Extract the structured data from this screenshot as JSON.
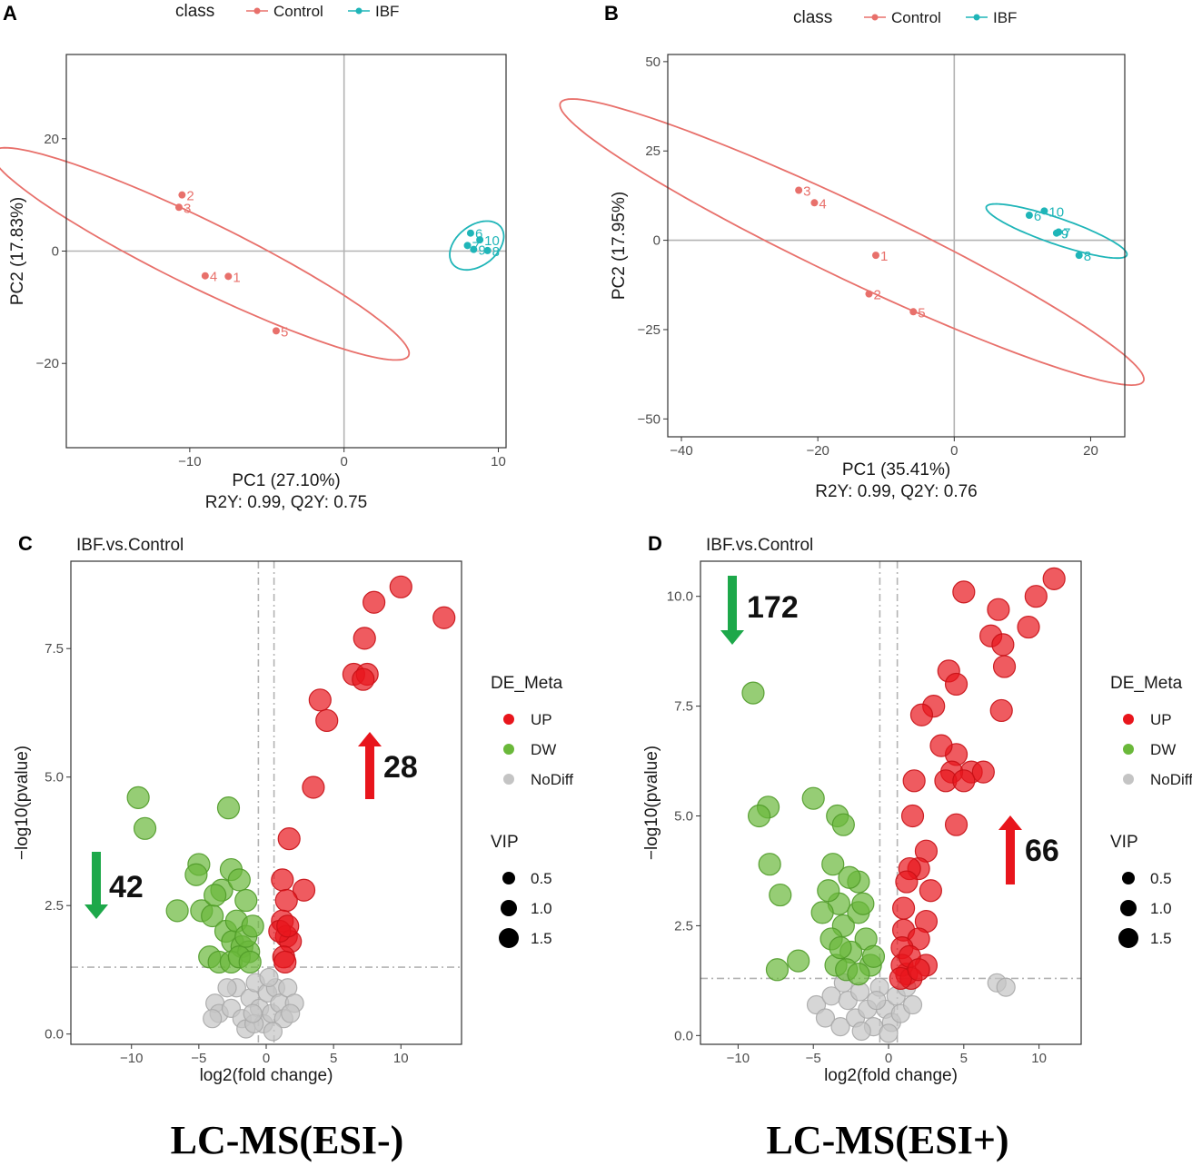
{
  "colors": {
    "control": "#e8706b",
    "ibf": "#1fb5b8",
    "up": "#e8151c",
    "dw": "#6ab83a",
    "nodiff": "#c4c4c4",
    "arrow_up": "#e8151c",
    "arrow_down": "#1da84a",
    "refline": "#b3b3b3"
  },
  "chart_data": [
    {
      "panel": "A",
      "type": "scatter",
      "legend": {
        "title": "class",
        "items": [
          "Control",
          "IBF"
        ]
      },
      "xlabel": "PC1 (27.10%)",
      "subtitle": "R2Y: 0.99, Q2Y: 0.75",
      "ylabel": "PC2 (17.83%)",
      "xlim": [
        -18,
        10.5
      ],
      "ylim": [
        -35,
        35
      ],
      "xticks": [
        -10,
        0,
        10
      ],
      "yticks": [
        -20,
        0,
        20
      ],
      "series": [
        {
          "name": "Control",
          "points": [
            {
              "label": "1",
              "x": -7.5,
              "y": -4.5
            },
            {
              "label": "2",
              "x": -10.5,
              "y": 10
            },
            {
              "label": "3",
              "x": -10.7,
              "y": 7.8
            },
            {
              "label": "4",
              "x": -9.0,
              "y": -4.4
            },
            {
              "label": "5",
              "x": -4.4,
              "y": -14.2
            }
          ]
        },
        {
          "name": "IBF",
          "points": [
            {
              "label": "6",
              "x": 8.2,
              "y": 3.2
            },
            {
              "label": "7",
              "x": 8.0,
              "y": 1.0
            },
            {
              "label": "8",
              "x": 9.3,
              "y": 0.1
            },
            {
              "label": "9",
              "x": 8.4,
              "y": 0.3
            },
            {
              "label": "10",
              "x": 8.8,
              "y": 2.0
            }
          ]
        }
      ],
      "ellipses": [
        {
          "name": "Control",
          "cx": -9.3,
          "cy": -0.5,
          "rx": 22.9,
          "ry": 3.9,
          "angle_deg": -55
        },
        {
          "name": "IBF",
          "cx": 8.6,
          "cy": 1.0,
          "rx": 1.6,
          "ry": 4.4,
          "angle_deg": -10
        }
      ]
    },
    {
      "panel": "B",
      "type": "scatter",
      "legend": {
        "title": "class",
        "items": [
          "Control",
          "IBF"
        ]
      },
      "xlabel": "PC1 (35.41%)",
      "subtitle": "R2Y: 0.99, Q2Y: 0.76",
      "ylabel": "PC2 (17.95%)",
      "xlim": [
        -42,
        25
      ],
      "ylim": [
        -55,
        52
      ],
      "xticks": [
        -40,
        -20,
        0,
        20
      ],
      "yticks": [
        -50,
        -25,
        0,
        25,
        50
      ],
      "series": [
        {
          "name": "Control",
          "points": [
            {
              "label": "1",
              "x": -11.5,
              "y": -4.2
            },
            {
              "label": "2",
              "x": -12.5,
              "y": -15
            },
            {
              "label": "3",
              "x": -22.8,
              "y": 14
            },
            {
              "label": "4",
              "x": -20.5,
              "y": 10.5
            },
            {
              "label": "5",
              "x": -6.0,
              "y": -20.0
            }
          ]
        },
        {
          "name": "IBF",
          "points": [
            {
              "label": "6",
              "x": 11.0,
              "y": 7.0
            },
            {
              "label": "7",
              "x": 15.3,
              "y": 2.3
            },
            {
              "label": "8",
              "x": 18.3,
              "y": -4.2
            },
            {
              "label": "9",
              "x": 15.0,
              "y": 2.0
            },
            {
              "label": "10",
              "x": 13.2,
              "y": 8.2
            }
          ]
        }
      ],
      "ellipses": [
        {
          "name": "Control",
          "cx": -15.0,
          "cy": -0.5,
          "rx": 58.0,
          "ry": 8.5,
          "angle_deg": -43
        },
        {
          "name": "IBF",
          "cx": 15.0,
          "cy": 2.6,
          "rx": 12.4,
          "ry": 3.2,
          "angle_deg": -35
        }
      ]
    },
    {
      "panel": "C",
      "type": "scatter",
      "title": "IBF.vs.Control",
      "xlabel": "log2(fold change)",
      "ylabel": "−log10(pvalue)",
      "xlim": [
        -14.5,
        14.5
      ],
      "ylim": [
        -0.2,
        9.2
      ],
      "xticks": [
        -10,
        -5,
        0,
        5,
        10
      ],
      "yticks": [
        0.0,
        2.5,
        5.0,
        7.5
      ],
      "thresholds": {
        "x": [
          -0.58,
          0.58
        ],
        "y": 1.3
      },
      "legend": {
        "title": "DE_Meta",
        "items": [
          "UP",
          "DW",
          "NoDiff"
        ],
        "size_title": "VIP",
        "sizes": [
          "0.5",
          "1.0",
          "1.5"
        ]
      },
      "counts": {
        "up": "28",
        "down": "42"
      },
      "series": [
        {
          "name": "UP",
          "points": [
            [
              10.0,
              8.7
            ],
            [
              13.2,
              8.1
            ],
            [
              8.0,
              8.4
            ],
            [
              7.3,
              7.7
            ],
            [
              6.5,
              7.0
            ],
            [
              7.5,
              7.0
            ],
            [
              7.2,
              6.9
            ],
            [
              4.0,
              6.5
            ],
            [
              4.5,
              6.1
            ],
            [
              3.5,
              4.8
            ],
            [
              1.7,
              3.8
            ],
            [
              1.2,
              3.0
            ],
            [
              2.8,
              2.8
            ],
            [
              1.5,
              2.6
            ],
            [
              1.2,
              2.2
            ],
            [
              1.5,
              1.9
            ],
            [
              1.8,
              1.8
            ],
            [
              1.3,
              1.5
            ],
            [
              1.4,
              1.4
            ],
            [
              1.0,
              2.0
            ],
            [
              1.6,
              2.1
            ]
          ]
        },
        {
          "name": "DW",
          "points": [
            [
              -9.5,
              4.6
            ],
            [
              -9.0,
              4.0
            ],
            [
              -2.8,
              4.4
            ],
            [
              -5.0,
              3.3
            ],
            [
              -5.2,
              3.1
            ],
            [
              -2.6,
              3.2
            ],
            [
              -3.3,
              2.8
            ],
            [
              -6.6,
              2.4
            ],
            [
              -4.8,
              2.4
            ],
            [
              -4.0,
              2.3
            ],
            [
              -2.0,
              3.0
            ],
            [
              -1.5,
              2.6
            ],
            [
              -3.0,
              2.0
            ],
            [
              -2.5,
              1.8
            ],
            [
              -2.2,
              2.2
            ],
            [
              -1.8,
              1.7
            ],
            [
              -1.3,
              1.6
            ],
            [
              -4.2,
              1.5
            ],
            [
              -3.5,
              1.4
            ],
            [
              -2.6,
              1.4
            ],
            [
              -2.0,
              1.5
            ],
            [
              -1.5,
              1.9
            ],
            [
              -1.2,
              1.4
            ],
            [
              -1.0,
              2.1
            ],
            [
              -3.8,
              2.7
            ]
          ]
        },
        {
          "name": "NoDiff",
          "points": [
            [
              -3.8,
              0.6
            ],
            [
              -3.5,
              0.4
            ],
            [
              -4.0,
              0.3
            ],
            [
              -2.6,
              0.5
            ],
            [
              -2.2,
              0.9
            ],
            [
              -1.8,
              0.3
            ],
            [
              -1.5,
              0.1
            ],
            [
              -1.2,
              0.7
            ],
            [
              -0.8,
              1.0
            ],
            [
              -0.5,
              0.5
            ],
            [
              -0.2,
              0.2
            ],
            [
              0.1,
              0.8
            ],
            [
              0.4,
              0.4
            ],
            [
              0.7,
              0.9
            ],
            [
              1.0,
              0.6
            ],
            [
              1.3,
              0.3
            ],
            [
              1.6,
              0.9
            ],
            [
              2.1,
              0.6
            ],
            [
              -0.9,
              0.2
            ],
            [
              0.2,
              1.1
            ],
            [
              -2.9,
              0.9
            ],
            [
              -1.0,
              0.4
            ],
            [
              0.5,
              0.05
            ],
            [
              1.8,
              0.4
            ]
          ]
        }
      ]
    },
    {
      "panel": "D",
      "type": "scatter",
      "title": "IBF.vs.Control",
      "xlabel": "log2(fold change)",
      "ylabel": "−log10(pvalue)",
      "xlim": [
        -12.5,
        12.8
      ],
      "ylim": [
        -0.2,
        10.8
      ],
      "xticks": [
        -10,
        -5,
        0,
        5,
        10
      ],
      "yticks": [
        0.0,
        2.5,
        5.0,
        7.5,
        10.0
      ],
      "thresholds": {
        "x": [
          -0.58,
          0.58
        ],
        "y": 1.3
      },
      "legend": {
        "title": "DE_Meta",
        "items": [
          "UP",
          "DW",
          "NoDiff"
        ],
        "size_title": "VIP",
        "sizes": [
          "0.5",
          "1.0",
          "1.5"
        ]
      },
      "counts": {
        "up": "66",
        "down": "172"
      },
      "series": [
        {
          "name": "UP",
          "points": [
            [
              11.0,
              10.4
            ],
            [
              9.8,
              10.0
            ],
            [
              7.3,
              9.7
            ],
            [
              5.0,
              10.1
            ],
            [
              9.3,
              9.3
            ],
            [
              6.8,
              9.1
            ],
            [
              7.6,
              8.9
            ],
            [
              7.7,
              8.4
            ],
            [
              4.0,
              8.3
            ],
            [
              4.5,
              8.0
            ],
            [
              7.5,
              7.4
            ],
            [
              3.0,
              7.5
            ],
            [
              2.2,
              7.3
            ],
            [
              4.5,
              6.4
            ],
            [
              3.5,
              6.6
            ],
            [
              5.5,
              6.0
            ],
            [
              4.2,
              6.0
            ],
            [
              6.3,
              6.0
            ],
            [
              3.8,
              5.8
            ],
            [
              5.0,
              5.8
            ],
            [
              1.7,
              5.8
            ],
            [
              4.5,
              4.8
            ],
            [
              1.6,
              5.0
            ],
            [
              2.5,
              4.2
            ],
            [
              2.0,
              3.8
            ],
            [
              1.4,
              3.8
            ],
            [
              1.2,
              3.5
            ],
            [
              2.8,
              3.3
            ],
            [
              1.0,
              2.9
            ],
            [
              2.5,
              2.6
            ],
            [
              1.0,
              2.4
            ],
            [
              2.0,
              2.2
            ],
            [
              0.9,
              2.0
            ],
            [
              2.5,
              1.6
            ],
            [
              1.2,
              1.4
            ],
            [
              0.9,
              1.6
            ],
            [
              1.5,
              1.3
            ],
            [
              0.8,
              1.3
            ],
            [
              1.4,
              1.8
            ],
            [
              2.0,
              1.5
            ]
          ]
        },
        {
          "name": "DW",
          "points": [
            [
              -9.0,
              7.8
            ],
            [
              -5.0,
              5.4
            ],
            [
              -8.0,
              5.2
            ],
            [
              -8.6,
              5.0
            ],
            [
              -3.4,
              5.0
            ],
            [
              -3.0,
              4.8
            ],
            [
              -7.9,
              3.9
            ],
            [
              -3.7,
              3.9
            ],
            [
              -2.0,
              3.5
            ],
            [
              -7.2,
              3.2
            ],
            [
              -3.3,
              3.0
            ],
            [
              -4.4,
              2.8
            ],
            [
              -3.0,
              2.5
            ],
            [
              -2.0,
              2.8
            ],
            [
              -1.5,
              2.2
            ],
            [
              -3.8,
              2.2
            ],
            [
              -2.5,
              1.9
            ],
            [
              -1.2,
              1.6
            ],
            [
              -3.5,
              1.6
            ],
            [
              -2.8,
              1.5
            ],
            [
              -6.0,
              1.7
            ],
            [
              -7.4,
              1.5
            ],
            [
              -2.0,
              1.4
            ],
            [
              -1.0,
              1.8
            ],
            [
              -4.0,
              3.3
            ],
            [
              -2.6,
              3.6
            ],
            [
              -3.2,
              2.0
            ],
            [
              -1.7,
              3.0
            ]
          ]
        },
        {
          "name": "NoDiff",
          "points": [
            [
              -4.8,
              0.7
            ],
            [
              -4.2,
              0.4
            ],
            [
              -3.8,
              0.9
            ],
            [
              -3.2,
              0.2
            ],
            [
              -2.7,
              0.8
            ],
            [
              -2.2,
              0.4
            ],
            [
              -1.9,
              1.0
            ],
            [
              -1.4,
              0.6
            ],
            [
              -1.0,
              0.2
            ],
            [
              -0.6,
              1.1
            ],
            [
              -0.2,
              0.6
            ],
            [
              0.2,
              0.3
            ],
            [
              0.5,
              0.9
            ],
            [
              0.8,
              0.5
            ],
            [
              1.2,
              1.1
            ],
            [
              1.6,
              0.7
            ],
            [
              -3.0,
              1.2
            ],
            [
              -1.8,
              0.1
            ],
            [
              7.2,
              1.2
            ],
            [
              7.8,
              1.1
            ],
            [
              -0.8,
              0.8
            ],
            [
              0.0,
              0.05
            ]
          ]
        }
      ]
    }
  ],
  "captions": {
    "left": "LC-MS(ESI-)",
    "right": "LC-MS(ESI+)"
  }
}
